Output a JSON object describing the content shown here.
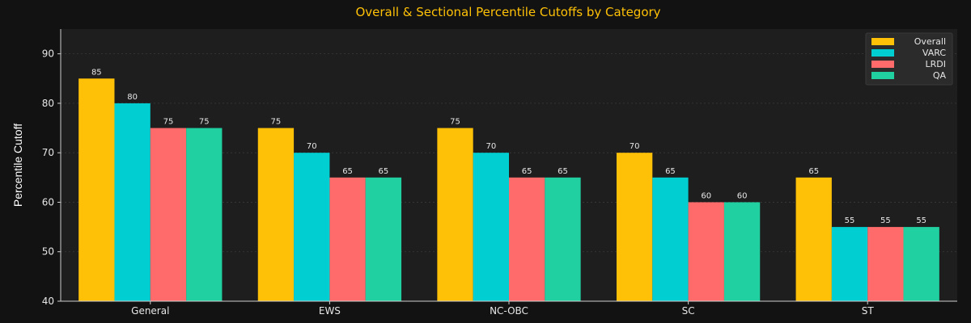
{
  "chart_data": {
    "type": "bar",
    "title": "Overall & Sectional Percentile Cutoffs by Category",
    "xlabel": "",
    "ylabel": "Percentile Cutoff",
    "ylim": [
      40,
      95
    ],
    "yticks": [
      40,
      50,
      60,
      70,
      80,
      90
    ],
    "grid": true,
    "legend_position": "top-right",
    "categories": [
      "General",
      "EWS",
      "NC-OBC",
      "SC",
      "ST"
    ],
    "series": [
      {
        "name": "Overall",
        "color": "#FFC107",
        "values": [
          85,
          75,
          75,
          70,
          65
        ]
      },
      {
        "name": "VARC",
        "color": "#00CED1",
        "values": [
          80,
          70,
          70,
          65,
          55
        ]
      },
      {
        "name": "LRDI",
        "color": "#FF6B6B",
        "values": [
          75,
          65,
          65,
          60,
          55
        ]
      },
      {
        "name": "QA",
        "color": "#20D0A0",
        "values": [
          75,
          65,
          65,
          60,
          55
        ]
      }
    ],
    "colors": {
      "background": "#121212",
      "plot_background": "#1e1e1e",
      "title": "#FFC107",
      "grid": "#3a3a3a"
    }
  }
}
